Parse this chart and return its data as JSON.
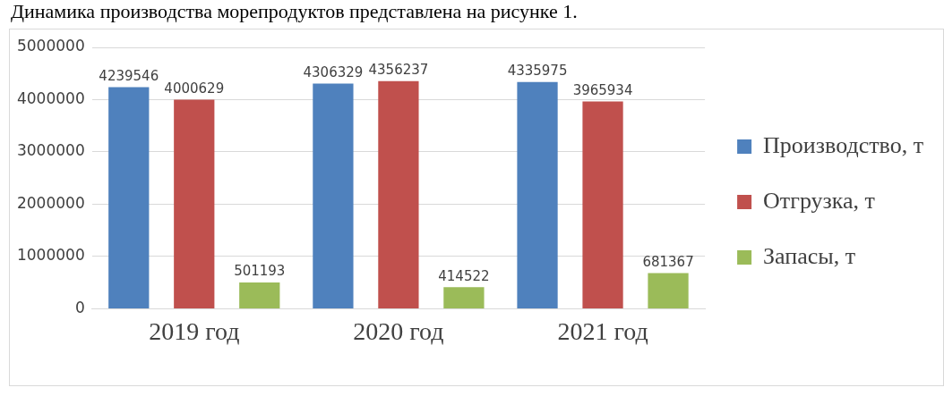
{
  "chart_data": {
    "type": "bar",
    "annotations": [
      "Динамика производства морепродуктов представлена на рисунке 1."
    ],
    "categories": [
      "2019 год",
      "2020 год",
      "2021 год"
    ],
    "series": [
      {
        "name": "Производство, т",
        "color": "#4f81bd",
        "values": [
          4239546,
          4306329,
          4335975
        ]
      },
      {
        "name": "Отгрузка, т",
        "color": "#c0504d",
        "values": [
          4000629,
          4356237,
          3965934
        ]
      },
      {
        "name": "Запасы, т",
        "color": "#9bbb59",
        "values": [
          501193,
          414522,
          681367
        ]
      }
    ],
    "ylim": [
      0,
      5000000
    ],
    "yticks": [
      0,
      1000000,
      2000000,
      3000000,
      4000000,
      5000000
    ],
    "grid": "y",
    "legend": "right",
    "data_labels": true
  }
}
